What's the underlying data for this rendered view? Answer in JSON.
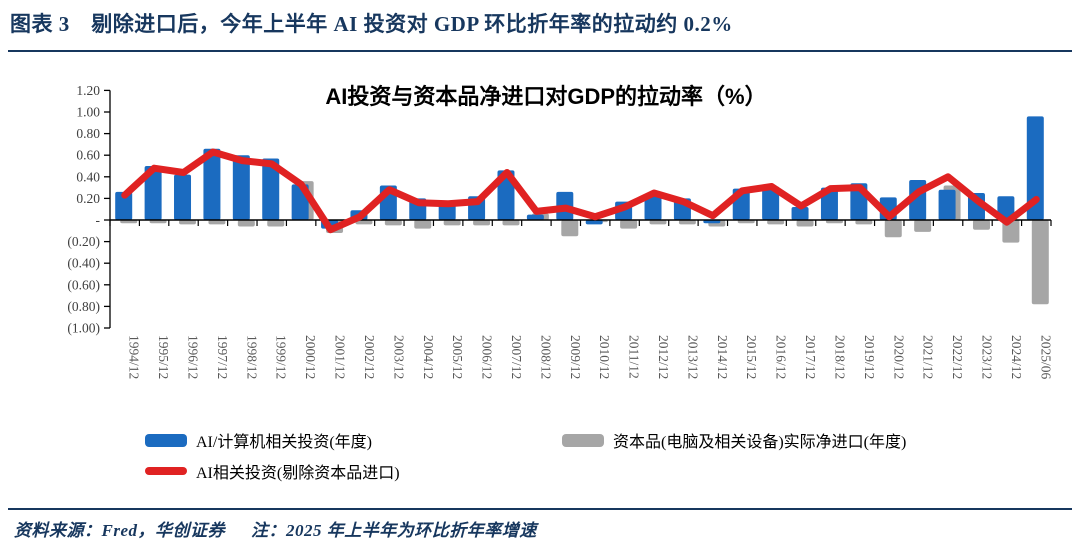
{
  "header": {
    "title": "图表 3　剔除进口后，今年上半年 AI 投资对 GDP 环比折年率的拉动约 0.2%"
  },
  "footer": {
    "source": "资料来源：Fred，华创证券",
    "note": "注：2025 年上半年为环比折年率增速"
  },
  "colors": {
    "navy": "#17375e",
    "bar_blue": "#1b6bc0",
    "bar_gray": "#a6a6a6",
    "line_red": "#e02222",
    "axis": "#000000",
    "ytick_text": "#404040",
    "xtick_text": "#595959"
  },
  "chart_data": {
    "type": "bar",
    "title": "AI投资与资本品净进口对GDP的拉动率（%）",
    "categories": [
      "1994/12",
      "1995/12",
      "1996/12",
      "1997/12",
      "1998/12",
      "1999/12",
      "2000/12",
      "2001/12",
      "2002/12",
      "2003/12",
      "2004/12",
      "2005/12",
      "2006/12",
      "2007/12",
      "2008/12",
      "2009/12",
      "2010/12",
      "2011/12",
      "2012/12",
      "2013/12",
      "2014/12",
      "2015/12",
      "2016/12",
      "2017/12",
      "2018/12",
      "2019/12",
      "2020/12",
      "2021/12",
      "2022/12",
      "2023/12",
      "2024/12",
      "2025/06"
    ],
    "series": [
      {
        "name": "AI/计算机相关投资(年度)",
        "type": "bar",
        "color": "#1b6bc0",
        "values": [
          0.26,
          0.5,
          0.42,
          0.66,
          0.6,
          0.57,
          0.33,
          -0.08,
          0.09,
          0.32,
          0.2,
          0.16,
          0.22,
          0.46,
          0.05,
          0.26,
          -0.04,
          0.17,
          0.24,
          0.2,
          -0.03,
          0.29,
          0.31,
          0.12,
          0.3,
          0.34,
          0.21,
          0.37,
          0.28,
          0.25,
          0.22,
          0.96
        ]
      },
      {
        "name": "资本品(电脑及相关设备)实际净进口(年度)",
        "type": "bar",
        "color": "#a6a6a6",
        "values": [
          -0.03,
          -0.03,
          -0.04,
          -0.04,
          -0.06,
          -0.06,
          0.36,
          -0.12,
          -0.04,
          -0.05,
          -0.08,
          -0.05,
          -0.05,
          -0.05,
          0.06,
          -0.15,
          -0.02,
          -0.08,
          -0.04,
          -0.04,
          -0.06,
          -0.03,
          -0.04,
          -0.06,
          -0.03,
          -0.04,
          -0.16,
          -0.11,
          0.32,
          -0.09,
          -0.21,
          -0.78
        ]
      },
      {
        "name": "AI相关投资(剔除资本品进口)",
        "type": "line",
        "color": "#e02222",
        "values": [
          0.23,
          0.48,
          0.44,
          0.63,
          0.55,
          0.52,
          0.33,
          -0.09,
          0.03,
          0.28,
          0.16,
          0.15,
          0.17,
          0.44,
          0.08,
          0.11,
          0.03,
          0.12,
          0.25,
          0.17,
          0.04,
          0.27,
          0.31,
          0.13,
          0.29,
          0.3,
          0.03,
          0.26,
          0.4,
          0.18,
          -0.02,
          0.19
        ]
      }
    ],
    "ylim": [
      -1.0,
      1.2
    ],
    "ytick_step": 0.2,
    "ytick_labels": [
      "1.20",
      "1.00",
      "0.80",
      "0.60",
      "0.40",
      "0.20",
      "-",
      "(0.20)",
      "(0.40)",
      "(0.60)",
      "(0.80)",
      "(1.00)"
    ],
    "grid": false,
    "legend_position": "bottom"
  }
}
